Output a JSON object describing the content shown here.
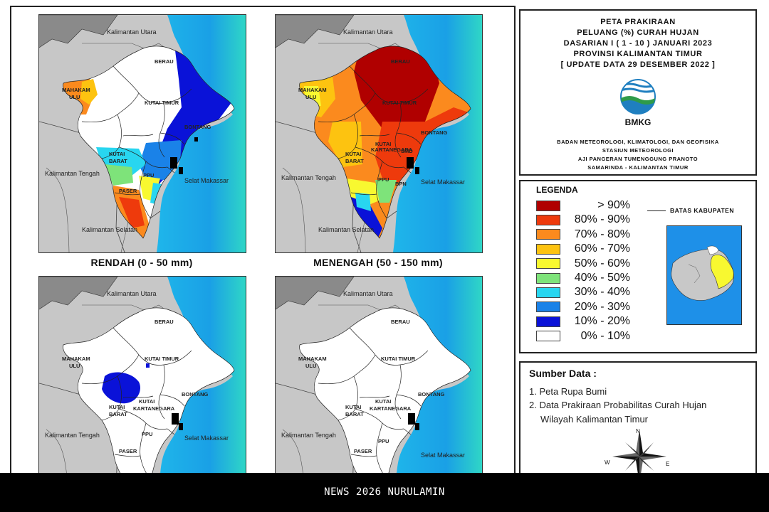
{
  "title": {
    "line1": "PETA PRAKIRAAN",
    "line2": "PELUANG (%) CURAH HUJAN",
    "line3": "DASARIAN I ( 1 - 10 ) JANUARI 2023",
    "line4": "PROVINSI KALIMANTAN TIMUR",
    "line5": "[ UPDATE DATA 29 DESEMBER 2022 ]"
  },
  "logo": {
    "text": "BMKG",
    "icon": "bmkg-logo-icon"
  },
  "agency": {
    "line1": "BADAN METEOROLOGI, KLIMATOLOGI, DAN GEOFISIKA",
    "line2": "STASIUN METEOROLOGI",
    "line3": "AJI PANGERAN TUMENGGUNG PRANOTO",
    "line4": "SAMARINDA - KALIMANTAN TIMUR"
  },
  "maps": [
    {
      "caption": "RENDAH (0 - 50 mm)"
    },
    {
      "caption": "MENENGAH (50 - 150 mm)"
    },
    {
      "caption": ""
    },
    {
      "caption": ""
    }
  ],
  "map_labels": {
    "kaltara": "Kalimantan Utara",
    "kalteng": "Kalimantan Tengah",
    "kalsel": "Kalimantan Selatan",
    "selat": "Selat Makassar",
    "berau": "BERAU",
    "mahakam1": "MAHAKAM",
    "mahakam2": "ULU",
    "kutim": "KUTAI TIMUR",
    "bontang": "BONTANG",
    "kubar1": "KUTAI",
    "kubar2": "BARAT",
    "kukar1": "KUTAI",
    "kukar2": "KARTANEGARA",
    "ppu": "PPU",
    "paser": "PASER",
    "smd": "SMD",
    "bpn": "BPN"
  },
  "legend": {
    "title": "LEGENDA",
    "items": [
      {
        "label": "> 90%",
        "color": "#b00000"
      },
      {
        "label": "80% - 90%",
        "color": "#ee3a0c"
      },
      {
        "label": "70% - 80%",
        "color": "#fb8a1e"
      },
      {
        "label": "60% - 70%",
        "color": "#fdc310"
      },
      {
        "label": "50% - 60%",
        "color": "#f8f830"
      },
      {
        "label": "40% - 50%",
        "color": "#7ee37a"
      },
      {
        "label": "30% - 40%",
        "color": "#28d6f0"
      },
      {
        "label": "20% - 30%",
        "color": "#1a82e8"
      },
      {
        "label": "10% - 20%",
        "color": "#0a12d8"
      },
      {
        "label": "0% - 10%",
        "color": "#ffffff"
      }
    ],
    "boundary_label": "BATAS KABUPATEN"
  },
  "source": {
    "title": "Sumber Data :",
    "item1": "1. Peta Rupa Bumi",
    "item2a": "2. Data Prakiraan Probabilitas Curah Hujan",
    "item2b": "Wilayah Kalimantan Timur"
  },
  "compass": {
    "n": "N",
    "w": "W",
    "e": "E",
    "icon": "compass-rose-icon"
  },
  "footer": {
    "text": "NEWS 2026 NURULAMIN"
  }
}
